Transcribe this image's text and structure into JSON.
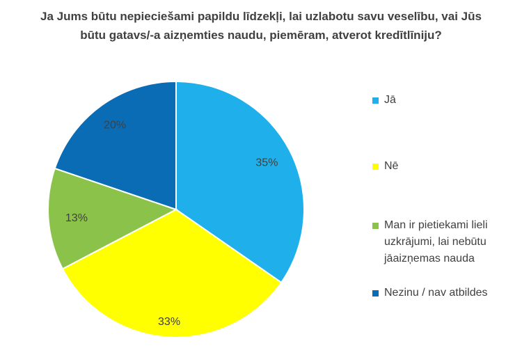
{
  "chart_data": {
    "type": "pie",
    "title": "Ja Jums būtu nepieciešami papildu līdzekļi, lai uzlabotu savu veselību, vai Jūs būtu gatavs/-a aizņemties naudu, piemēram, atverot kredītlīniju?",
    "slices": [
      {
        "label": "Jā",
        "value": 35,
        "display": "35%",
        "color": "#1FB0EC"
      },
      {
        "label": "Nē",
        "value": 33,
        "display": "33%",
        "color": "#FFFF00"
      },
      {
        "label": "Man ir pietiekami lieli uzkrājumi, lai nebūtu jāaizņemas nauda",
        "value": 13,
        "display": "13%",
        "color": "#8BC34A"
      },
      {
        "label": "Nezinu / nav atbildes",
        "value": 20,
        "display": "20%",
        "color": "#0A6CB5"
      }
    ],
    "legend_position": "right"
  }
}
